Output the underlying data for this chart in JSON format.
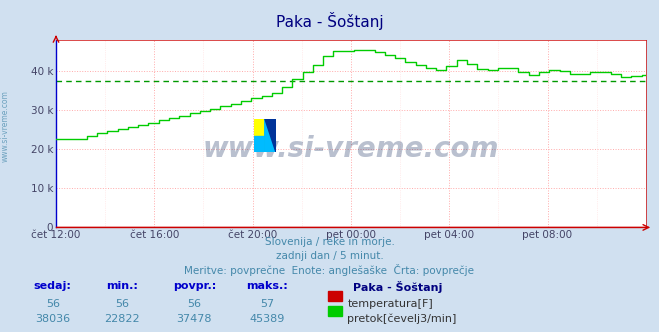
{
  "title": "Paka - Šoštanj",
  "title_color": "#000080",
  "bg_color": "#d0e0f0",
  "plot_bg_color": "#ffffff",
  "grid_color_major": "#ffaaaa",
  "grid_color_minor": "#ffdddd",
  "x_labels": [
    "čet 12:00",
    "čet 16:00",
    "čet 20:00",
    "pet 00:00",
    "pet 04:00",
    "pet 08:00"
  ],
  "y_ticks": [
    0,
    10000,
    20000,
    30000,
    40000
  ],
  "y_tick_labels": [
    "0",
    "10 k",
    "20 k",
    "30 k",
    "40 k"
  ],
  "avg_line_value": 37478,
  "avg_line_color": "#009900",
  "flow_line_color": "#00cc00",
  "temp_line_color": "#cc0000",
  "watermark_text": "www.si-vreme.com",
  "watermark_color": "#1a3060",
  "subtitle1": "Slovenija / reke in morje.",
  "subtitle2": "zadnji dan / 5 minut.",
  "subtitle3": "Meritve: povprečne  Enote: anglešaške  Črta: povprečje",
  "subtitle_color": "#4488aa",
  "table_header": [
    "sedaj:",
    "min.:",
    "povpr.:",
    "maks.:"
  ],
  "table_header_color": "#0000cc",
  "station_name": "Paka - Šoštanj",
  "station_color": "#000080",
  "row1_values": [
    "56",
    "56",
    "56",
    "57"
  ],
  "row2_values": [
    "38036",
    "22822",
    "37478",
    "45389"
  ],
  "temp_color_box": "#cc0000",
  "flow_color_box": "#00cc00",
  "temp_label": "temperatura[F]",
  "flow_label": "pretok[čevelj3/min]",
  "table_value_color": "#4488aa",
  "left_text": "www.si-vreme.com",
  "left_text_color": "#4488aa",
  "n_points": 288,
  "flow_seed": 42,
  "ylim_max": 48000
}
